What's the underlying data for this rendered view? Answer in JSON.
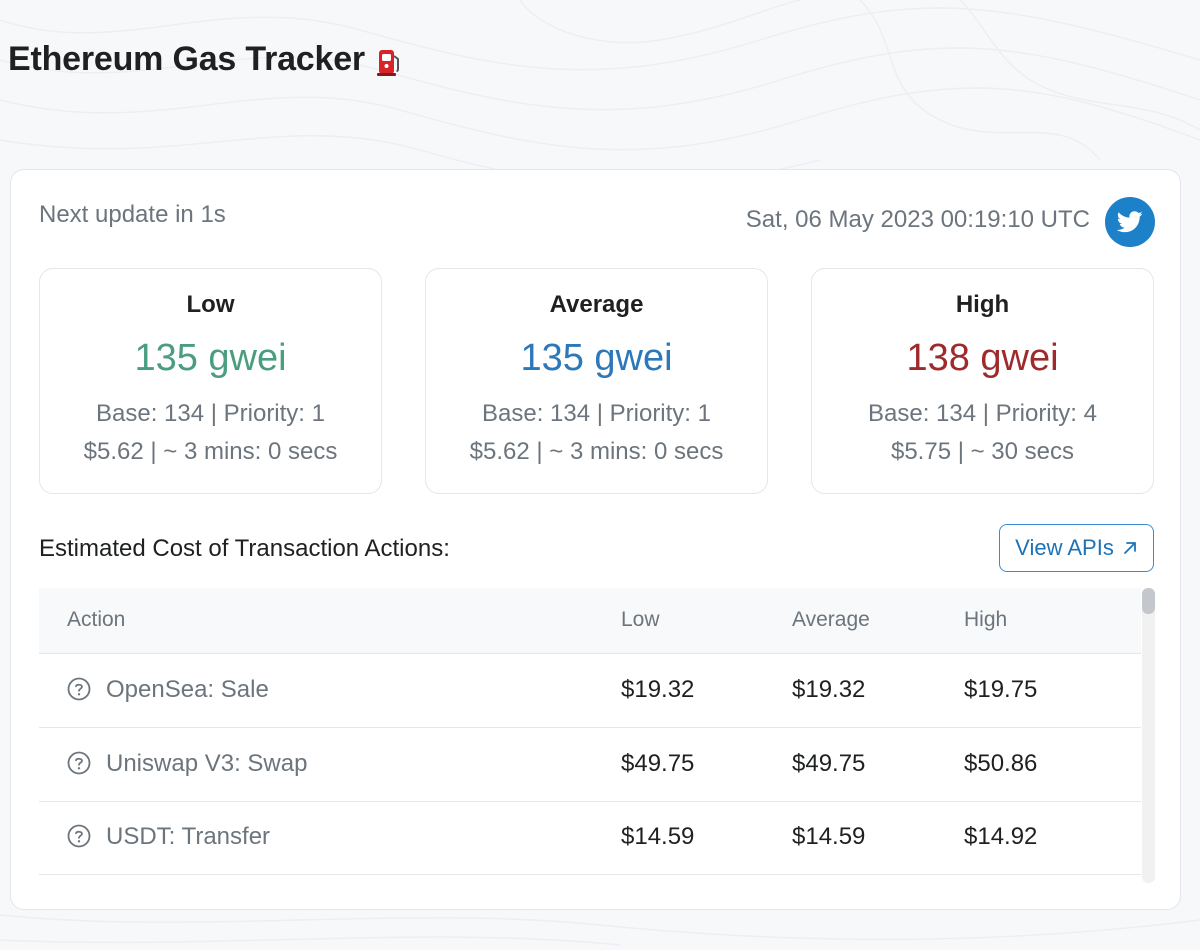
{
  "page": {
    "title": "Ethereum Gas Tracker"
  },
  "header": {
    "next_update": "Next update in 1s",
    "timestamp": "Sat, 06 May 2023 00:19:10 UTC"
  },
  "gas": [
    {
      "label": "Low",
      "value": "135 gwei",
      "base_priority": "Base: 134 | Priority: 1",
      "cost_time": "$5.62 | ~ 3 mins: 0 secs",
      "color": "#4a9d7e"
    },
    {
      "label": "Average",
      "value": "135 gwei",
      "base_priority": "Base: 134 | Priority: 1",
      "cost_time": "$5.62 | ~ 3 mins: 0 secs",
      "color": "#2c78b8"
    },
    {
      "label": "High",
      "value": "138 gwei",
      "base_priority": "Base: 134 | Priority: 4",
      "cost_time": "$5.75 | ~ 30 secs",
      "color": "#9e2a2b"
    }
  ],
  "actions": {
    "title": "Estimated Cost of Transaction Actions:",
    "view_apis_label": "View APIs",
    "columns": [
      "Action",
      "Low",
      "Average",
      "High"
    ],
    "rows": [
      {
        "action": "OpenSea: Sale",
        "low": "$19.32",
        "average": "$19.32",
        "high": "$19.75"
      },
      {
        "action": "Uniswap V3: Swap",
        "low": "$49.75",
        "average": "$49.75",
        "high": "$50.86"
      },
      {
        "action": "USDT: Transfer",
        "low": "$14.59",
        "average": "$14.59",
        "high": "$14.92"
      }
    ]
  },
  "icons": {
    "title_icon": "fuel-pump-icon",
    "social": "twitter-icon",
    "external_link": "arrow-up-right-icon",
    "row_help": "question-circle-icon"
  },
  "colors": {
    "accent": "#1d81c9",
    "low": "#4a9d7e",
    "average": "#2c78b8",
    "high": "#9e2a2b"
  }
}
